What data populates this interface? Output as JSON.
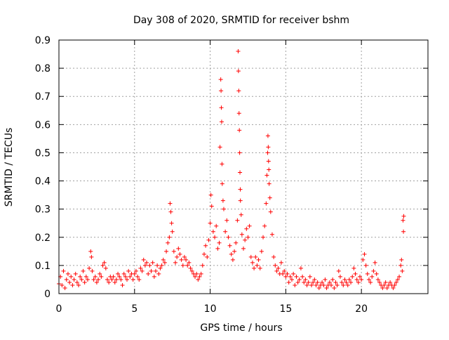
{
  "chart_data": {
    "type": "scatter",
    "title": "Day 308 of 2020, SRMTID for receiver bshm",
    "xlabel": "GPS time / hours",
    "ylabel": "SRMTID / TECUs",
    "xlim": [
      0,
      24.4
    ],
    "ylim": [
      0,
      0.9
    ],
    "xticks": [
      0,
      5,
      10,
      15,
      20
    ],
    "xtick_labels": [
      "0",
      "5",
      "10",
      "15",
      "20"
    ],
    "yticks": [
      0,
      0.1,
      0.2,
      0.3,
      0.4,
      0.5,
      0.6,
      0.7,
      0.8,
      0.9
    ],
    "ytick_labels": [
      "0",
      "0.1",
      "0.2",
      "0.3",
      "0.4",
      "0.5",
      "0.6",
      "0.7",
      "0.8",
      "0.9"
    ],
    "grid": true,
    "legend": false,
    "marker": "+",
    "series": [
      {
        "name": "SRMTID",
        "color": "#ff0000",
        "points": [
          [
            0.0,
            0.035
          ],
          [
            0.1,
            0.06
          ],
          [
            0.2,
            0.03
          ],
          [
            0.3,
            0.08
          ],
          [
            0.4,
            0.02
          ],
          [
            0.5,
            0.05
          ],
          [
            0.6,
            0.07
          ],
          [
            0.7,
            0.04
          ],
          [
            0.8,
            0.06
          ],
          [
            0.9,
            0.03
          ],
          [
            1.0,
            0.05
          ],
          [
            1.1,
            0.07
          ],
          [
            1.2,
            0.04
          ],
          [
            1.3,
            0.03
          ],
          [
            1.4,
            0.06
          ],
          [
            1.5,
            0.05
          ],
          [
            1.6,
            0.08
          ],
          [
            1.7,
            0.04
          ],
          [
            1.8,
            0.06
          ],
          [
            1.9,
            0.05
          ],
          [
            2.0,
            0.09
          ],
          [
            2.1,
            0.15
          ],
          [
            2.15,
            0.13
          ],
          [
            2.2,
            0.08
          ],
          [
            2.3,
            0.05
          ],
          [
            2.4,
            0.06
          ],
          [
            2.5,
            0.04
          ],
          [
            2.6,
            0.05
          ],
          [
            2.7,
            0.07
          ],
          [
            2.8,
            0.06
          ],
          [
            2.9,
            0.1
          ],
          [
            3.0,
            0.11
          ],
          [
            3.1,
            0.09
          ],
          [
            3.2,
            0.05
          ],
          [
            3.3,
            0.04
          ],
          [
            3.4,
            0.06
          ],
          [
            3.5,
            0.05
          ],
          [
            3.6,
            0.06
          ],
          [
            3.7,
            0.04
          ],
          [
            3.8,
            0.05
          ],
          [
            3.9,
            0.07
          ],
          [
            4.0,
            0.06
          ],
          [
            4.1,
            0.05
          ],
          [
            4.2,
            0.03
          ],
          [
            4.3,
            0.07
          ],
          [
            4.4,
            0.06
          ],
          [
            4.5,
            0.05
          ],
          [
            4.6,
            0.08
          ],
          [
            4.7,
            0.06
          ],
          [
            4.8,
            0.07
          ],
          [
            4.9,
            0.05
          ],
          [
            5.0,
            0.07
          ],
          [
            5.1,
            0.08
          ],
          [
            5.2,
            0.06
          ],
          [
            5.3,
            0.05
          ],
          [
            5.4,
            0.09
          ],
          [
            5.5,
            0.08
          ],
          [
            5.6,
            0.12
          ],
          [
            5.7,
            0.1
          ],
          [
            5.8,
            0.11
          ],
          [
            5.9,
            0.07
          ],
          [
            6.0,
            0.1
          ],
          [
            6.1,
            0.08
          ],
          [
            6.2,
            0.11
          ],
          [
            6.3,
            0.06
          ],
          [
            6.4,
            0.08
          ],
          [
            6.5,
            0.1
          ],
          [
            6.6,
            0.07
          ],
          [
            6.7,
            0.09
          ],
          [
            6.8,
            0.1
          ],
          [
            6.9,
            0.12
          ],
          [
            7.0,
            0.11
          ],
          [
            7.1,
            0.15
          ],
          [
            7.2,
            0.18
          ],
          [
            7.3,
            0.2
          ],
          [
            7.35,
            0.32
          ],
          [
            7.4,
            0.29
          ],
          [
            7.45,
            0.25
          ],
          [
            7.5,
            0.22
          ],
          [
            7.6,
            0.15
          ],
          [
            7.7,
            0.11
          ],
          [
            7.8,
            0.13
          ],
          [
            7.9,
            0.16
          ],
          [
            8.0,
            0.14
          ],
          [
            8.1,
            0.12
          ],
          [
            8.2,
            0.1
          ],
          [
            8.3,
            0.13
          ],
          [
            8.4,
            0.12
          ],
          [
            8.5,
            0.1
          ],
          [
            8.6,
            0.11
          ],
          [
            8.7,
            0.09
          ],
          [
            8.8,
            0.08
          ],
          [
            8.9,
            0.07
          ],
          [
            9.0,
            0.06
          ],
          [
            9.1,
            0.07
          ],
          [
            9.2,
            0.05
          ],
          [
            9.3,
            0.06
          ],
          [
            9.4,
            0.07
          ],
          [
            9.5,
            0.1
          ],
          [
            9.6,
            0.14
          ],
          [
            9.7,
            0.17
          ],
          [
            9.8,
            0.13
          ],
          [
            9.9,
            0.19
          ],
          [
            10.0,
            0.25
          ],
          [
            10.05,
            0.35
          ],
          [
            10.1,
            0.31
          ],
          [
            10.2,
            0.22
          ],
          [
            10.3,
            0.2
          ],
          [
            10.4,
            0.24
          ],
          [
            10.5,
            0.16
          ],
          [
            10.6,
            0.18
          ],
          [
            10.65,
            0.52
          ],
          [
            10.7,
            0.76
          ],
          [
            10.72,
            0.72
          ],
          [
            10.74,
            0.66
          ],
          [
            10.76,
            0.61
          ],
          [
            10.78,
            0.46
          ],
          [
            10.8,
            0.39
          ],
          [
            10.85,
            0.33
          ],
          [
            10.9,
            0.3
          ],
          [
            11.0,
            0.22
          ],
          [
            11.1,
            0.26
          ],
          [
            11.2,
            0.2
          ],
          [
            11.3,
            0.17
          ],
          [
            11.4,
            0.14
          ],
          [
            11.5,
            0.12
          ],
          [
            11.6,
            0.15
          ],
          [
            11.7,
            0.18
          ],
          [
            11.8,
            0.26
          ],
          [
            11.85,
            0.86
          ],
          [
            11.87,
            0.79
          ],
          [
            11.89,
            0.72
          ],
          [
            11.91,
            0.64
          ],
          [
            11.93,
            0.58
          ],
          [
            11.95,
            0.5
          ],
          [
            11.97,
            0.43
          ],
          [
            11.99,
            0.37
          ],
          [
            12.0,
            0.33
          ],
          [
            12.05,
            0.28
          ],
          [
            12.1,
            0.21
          ],
          [
            12.2,
            0.16
          ],
          [
            12.3,
            0.19
          ],
          [
            12.4,
            0.23
          ],
          [
            12.5,
            0.2
          ],
          [
            12.6,
            0.24
          ],
          [
            12.7,
            0.13
          ],
          [
            12.8,
            0.11
          ],
          [
            12.9,
            0.09
          ],
          [
            13.0,
            0.13
          ],
          [
            13.1,
            0.1
          ],
          [
            13.2,
            0.12
          ],
          [
            13.3,
            0.09
          ],
          [
            13.4,
            0.15
          ],
          [
            13.5,
            0.2
          ],
          [
            13.6,
            0.24
          ],
          [
            13.7,
            0.32
          ],
          [
            13.75,
            0.42
          ],
          [
            13.8,
            0.5
          ],
          [
            13.82,
            0.56
          ],
          [
            13.84,
            0.52
          ],
          [
            13.86,
            0.47
          ],
          [
            13.88,
            0.44
          ],
          [
            13.9,
            0.39
          ],
          [
            13.95,
            0.34
          ],
          [
            14.0,
            0.29
          ],
          [
            14.1,
            0.21
          ],
          [
            14.2,
            0.13
          ],
          [
            14.3,
            0.1
          ],
          [
            14.4,
            0.08
          ],
          [
            14.5,
            0.09
          ],
          [
            14.6,
            0.07
          ],
          [
            14.7,
            0.11
          ],
          [
            14.8,
            0.07
          ],
          [
            14.9,
            0.08
          ],
          [
            15.0,
            0.06
          ],
          [
            15.1,
            0.07
          ],
          [
            15.2,
            0.04
          ],
          [
            15.3,
            0.06
          ],
          [
            15.4,
            0.05
          ],
          [
            15.5,
            0.07
          ],
          [
            15.6,
            0.03
          ],
          [
            15.7,
            0.06
          ],
          [
            15.8,
            0.04
          ],
          [
            15.9,
            0.05
          ],
          [
            16.0,
            0.09
          ],
          [
            16.1,
            0.06
          ],
          [
            16.2,
            0.04
          ],
          [
            16.3,
            0.05
          ],
          [
            16.4,
            0.03
          ],
          [
            16.5,
            0.04
          ],
          [
            16.6,
            0.06
          ],
          [
            16.7,
            0.03
          ],
          [
            16.8,
            0.04
          ],
          [
            16.9,
            0.05
          ],
          [
            17.0,
            0.03
          ],
          [
            17.1,
            0.04
          ],
          [
            17.2,
            0.02
          ],
          [
            17.3,
            0.03
          ],
          [
            17.4,
            0.04
          ],
          [
            17.5,
            0.03
          ],
          [
            17.6,
            0.05
          ],
          [
            17.7,
            0.02
          ],
          [
            17.8,
            0.03
          ],
          [
            17.9,
            0.04
          ],
          [
            18.0,
            0.03
          ],
          [
            18.1,
            0.05
          ],
          [
            18.2,
            0.02
          ],
          [
            18.3,
            0.04
          ],
          [
            18.4,
            0.03
          ],
          [
            18.5,
            0.08
          ],
          [
            18.6,
            0.06
          ],
          [
            18.7,
            0.04
          ],
          [
            18.8,
            0.03
          ],
          [
            18.9,
            0.05
          ],
          [
            19.0,
            0.04
          ],
          [
            19.1,
            0.03
          ],
          [
            19.2,
            0.05
          ],
          [
            19.3,
            0.04
          ],
          [
            19.4,
            0.06
          ],
          [
            19.5,
            0.09
          ],
          [
            19.6,
            0.07
          ],
          [
            19.7,
            0.05
          ],
          [
            19.8,
            0.04
          ],
          [
            19.9,
            0.06
          ],
          [
            20.0,
            0.05
          ],
          [
            20.1,
            0.12
          ],
          [
            20.2,
            0.14
          ],
          [
            20.3,
            0.1
          ],
          [
            20.4,
            0.07
          ],
          [
            20.5,
            0.05
          ],
          [
            20.6,
            0.04
          ],
          [
            20.7,
            0.06
          ],
          [
            20.8,
            0.08
          ],
          [
            20.9,
            0.11
          ],
          [
            21.0,
            0.07
          ],
          [
            21.1,
            0.05
          ],
          [
            21.2,
            0.04
          ],
          [
            21.3,
            0.03
          ],
          [
            21.4,
            0.02
          ],
          [
            21.5,
            0.03
          ],
          [
            21.6,
            0.04
          ],
          [
            21.7,
            0.02
          ],
          [
            21.8,
            0.03
          ],
          [
            21.9,
            0.04
          ],
          [
            22.0,
            0.03
          ],
          [
            22.1,
            0.02
          ],
          [
            22.2,
            0.03
          ],
          [
            22.3,
            0.04
          ],
          [
            22.4,
            0.05
          ],
          [
            22.5,
            0.06
          ],
          [
            22.6,
            0.1
          ],
          [
            22.65,
            0.12
          ],
          [
            22.7,
            0.08
          ],
          [
            22.75,
            0.26
          ],
          [
            22.78,
            0.22
          ],
          [
            22.8,
            0.275
          ]
        ]
      }
    ]
  }
}
